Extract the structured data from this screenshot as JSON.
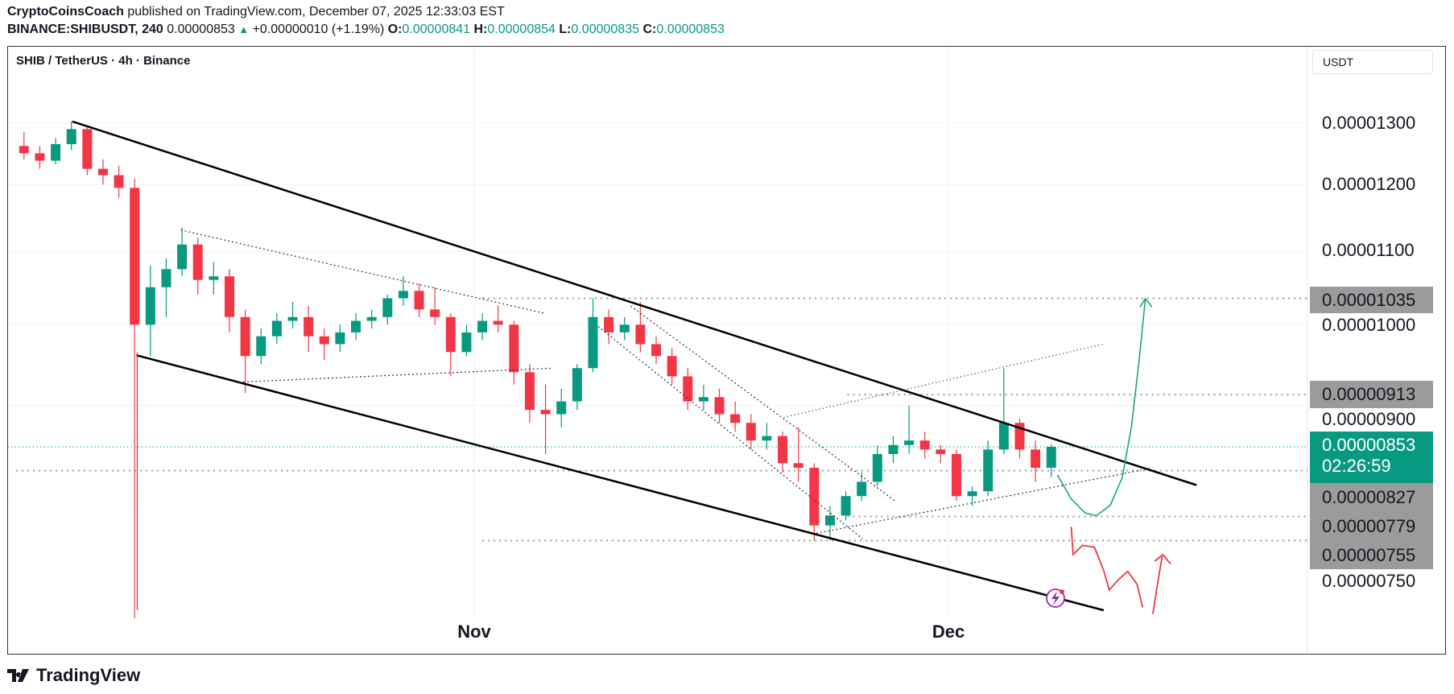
{
  "header": {
    "author": "CryptoCoinsCoach",
    "published_text": "published on TradingView.com, December 07, 2025 12:33:03 EST",
    "symbol_interval": "BINANCE:SHIBUSDT, 240",
    "last": "0.00000853",
    "change": "+0.00000010 (+1.19%)",
    "o_label": "O:",
    "o": "0.00000841",
    "h_label": "H:",
    "h": "0.00000854",
    "l_label": "L:",
    "l": "0.00000835",
    "c_label": "C:",
    "c": "0.00000853"
  },
  "chart_title": "SHIB / TetherUS · 4h · Binance",
  "currency_button": "USDT",
  "footer_logo": "TradingView",
  "colors": {
    "up": "#089981",
    "down": "#f23645",
    "level": "#9b9b9b",
    "accent": "#089981"
  },
  "chart_data": {
    "type": "candlestick",
    "title": "SHIB / TetherUS · 4h · Binance",
    "y_scale": "log",
    "grid": true,
    "y_ticks": [
      "0.00001300",
      "0.00001200",
      "0.00001100",
      "0.00001000",
      "0.00000900",
      "0.00000750"
    ],
    "x_ticks": [
      {
        "label": "Nov",
        "date": "2025-11-01"
      },
      {
        "label": "Dec",
        "date": "2025-12-01"
      }
    ],
    "current_price": {
      "value": "0.00000853",
      "countdown": "02:26:59"
    },
    "levels": [
      "0.00001035",
      "0.00000913",
      "0.00000827",
      "0.00000779",
      "0.00000755"
    ],
    "start_date": "2025-10-03",
    "candles_note_resolution": "daily approximation",
    "ohlc": [
      [
        1.262e-05,
        1.285e-05,
        1.24e-05,
        1.25e-05
      ],
      [
        1.25e-05,
        1.262e-05,
        1.225e-05,
        1.238e-05
      ],
      [
        1.238e-05,
        1.275e-05,
        1.232e-05,
        1.265e-05
      ],
      [
        1.265e-05,
        1.303e-05,
        1.255e-05,
        1.29e-05
      ],
      [
        1.29e-05,
        1.295e-05,
        1.215e-05,
        1.225e-05
      ],
      [
        1.225e-05,
        1.24e-05,
        1.2e-05,
        1.215e-05
      ],
      [
        1.215e-05,
        1.23e-05,
        1.18e-05,
        1.195e-05
      ],
      [
        1.195e-05,
        1.21e-05,
        6.28e-06,
        1e-05
      ],
      [
        1e-05,
        1.08e-05,
        9.6e-06,
        1.05e-05
      ],
      [
        1.05e-05,
        1.09e-05,
        1.01e-05,
        1.075e-05
      ],
      [
        1.075e-05,
        1.135e-05,
        1.065e-05,
        1.11e-05
      ],
      [
        1.11e-05,
        1.12e-05,
        1.04e-05,
        1.06e-05
      ],
      [
        1.06e-05,
        1.085e-05,
        1.04e-05,
        1.065e-05
      ],
      [
        1.065e-05,
        1.075e-05,
        9.9e-06,
        1.01e-05
      ],
      [
        1.01e-05,
        1.02e-05,
        9.15e-06,
        9.6e-06
      ],
      [
        9.6e-06,
        9.95e-06,
        9.5e-06,
        9.85e-06
      ],
      [
        9.85e-06,
        1.015e-05,
        9.75e-06,
        1.005e-05
      ],
      [
        1.005e-05,
        1.03e-05,
        9.95e-06,
        1.01e-05
      ],
      [
        1.01e-05,
        1.025e-05,
        9.65e-06,
        9.85e-06
      ],
      [
        9.85e-06,
        9.95e-06,
        9.55e-06,
        9.75e-06
      ],
      [
        9.75e-06,
        1e-05,
        9.65e-06,
        9.9e-06
      ],
      [
        9.9e-06,
        1.015e-05,
        9.8e-06,
        1.005e-05
      ],
      [
        1.005e-05,
        1.02e-05,
        9.95e-06,
        1.01e-05
      ],
      [
        1.01e-05,
        1.04e-05,
        1e-05,
        1.035e-05
      ],
      [
        1.035e-05,
        1.065e-05,
        1.025e-05,
        1.045e-05
      ],
      [
        1.045e-05,
        1.055e-05,
        1.01e-05,
        1.02e-05
      ],
      [
        1.02e-05,
        1.05e-05,
        1e-05,
        1.01e-05
      ],
      [
        1.01e-05,
        1.015e-05,
        9.35e-06,
        9.65e-06
      ],
      [
        9.65e-06,
        1e-05,
        9.6e-06,
        9.9e-06
      ],
      [
        9.9e-06,
        1.015e-05,
        9.8e-06,
        1.005e-05
      ],
      [
        1.005e-05,
        1.025e-05,
        9.9e-06,
        1e-05
      ],
      [
        1e-05,
        1.005e-05,
        9.25e-06,
        9.4e-06
      ],
      [
        9.4e-06,
        9.5e-06,
        8.8e-06,
        8.95e-06
      ],
      [
        8.95e-06,
        9.25e-06,
        8.45e-06,
        8.9e-06
      ],
      [
        8.9e-06,
        9.2e-06,
        8.75e-06,
        9.05e-06
      ],
      [
        9.05e-06,
        9.5e-06,
        8.95e-06,
        9.45e-06
      ],
      [
        9.45e-06,
        1.035e-05,
        9.4e-06,
        1.01e-05
      ],
      [
        1.01e-05,
        1.02e-05,
        9.75e-06,
        9.9e-06
      ],
      [
        9.9e-06,
        1.01e-05,
        9.8e-06,
        1e-05
      ],
      [
        1e-05,
        1.03e-05,
        9.65e-06,
        9.75e-06
      ],
      [
        9.75e-06,
        9.85e-06,
        9.5e-06,
        9.6e-06
      ],
      [
        9.6e-06,
        9.7e-06,
        9.25e-06,
        9.35e-06
      ],
      [
        9.35e-06,
        9.45e-06,
        8.95e-06,
        9.05e-06
      ],
      [
        9.05e-06,
        9.25e-06,
        8.95e-06,
        9.1e-06
      ],
      [
        9.1e-06,
        9.2e-06,
        8.8e-06,
        8.9e-06
      ],
      [
        8.9e-06,
        9.05e-06,
        8.7e-06,
        8.8e-06
      ],
      [
        8.8e-06,
        8.9e-06,
        8.5e-06,
        8.6e-06
      ],
      [
        8.6e-06,
        8.8e-06,
        8.5e-06,
        8.65e-06
      ],
      [
        8.65e-06,
        8.7e-06,
        8.25e-06,
        8.35e-06
      ],
      [
        8.35e-06,
        8.75e-06,
        8.15e-06,
        8.3e-06
      ],
      [
        8.3e-06,
        8.35e-06,
        7.55e-06,
        7.7e-06
      ],
      [
        7.7e-06,
        7.9e-06,
        7.55e-06,
        7.8e-06
      ],
      [
        7.8e-06,
        8.05e-06,
        7.75e-06,
        8e-06
      ],
      [
        8e-06,
        8.25e-06,
        7.95e-06,
        8.15e-06
      ],
      [
        8.15e-06,
        8.55e-06,
        8.1e-06,
        8.45e-06
      ],
      [
        8.45e-06,
        8.65e-06,
        8.35e-06,
        8.55e-06
      ],
      [
        8.55e-06,
        9e-06,
        8.45e-06,
        8.6e-06
      ],
      [
        8.6e-06,
        8.7e-06,
        8.4e-06,
        8.5e-06
      ],
      [
        8.5e-06,
        8.55e-06,
        8.35e-06,
        8.45e-06
      ],
      [
        8.45e-06,
        8.5e-06,
        7.95e-06,
        8e-06
      ],
      [
        8e-06,
        8.1e-06,
        7.9e-06,
        8.05e-06
      ],
      [
        8.05e-06,
        8.6e-06,
        8e-06,
        8.5e-06
      ],
      [
        8.5e-06,
        9.45e-06,
        8.45e-06,
        8.8e-06
      ],
      [
        8.8e-06,
        8.85e-06,
        8.4e-06,
        8.5e-06
      ],
      [
        8.5e-06,
        8.6e-06,
        8.15e-06,
        8.3e-06
      ],
      [
        8.3e-06,
        8.56e-06,
        8.2e-06,
        8.53e-06
      ]
    ]
  }
}
